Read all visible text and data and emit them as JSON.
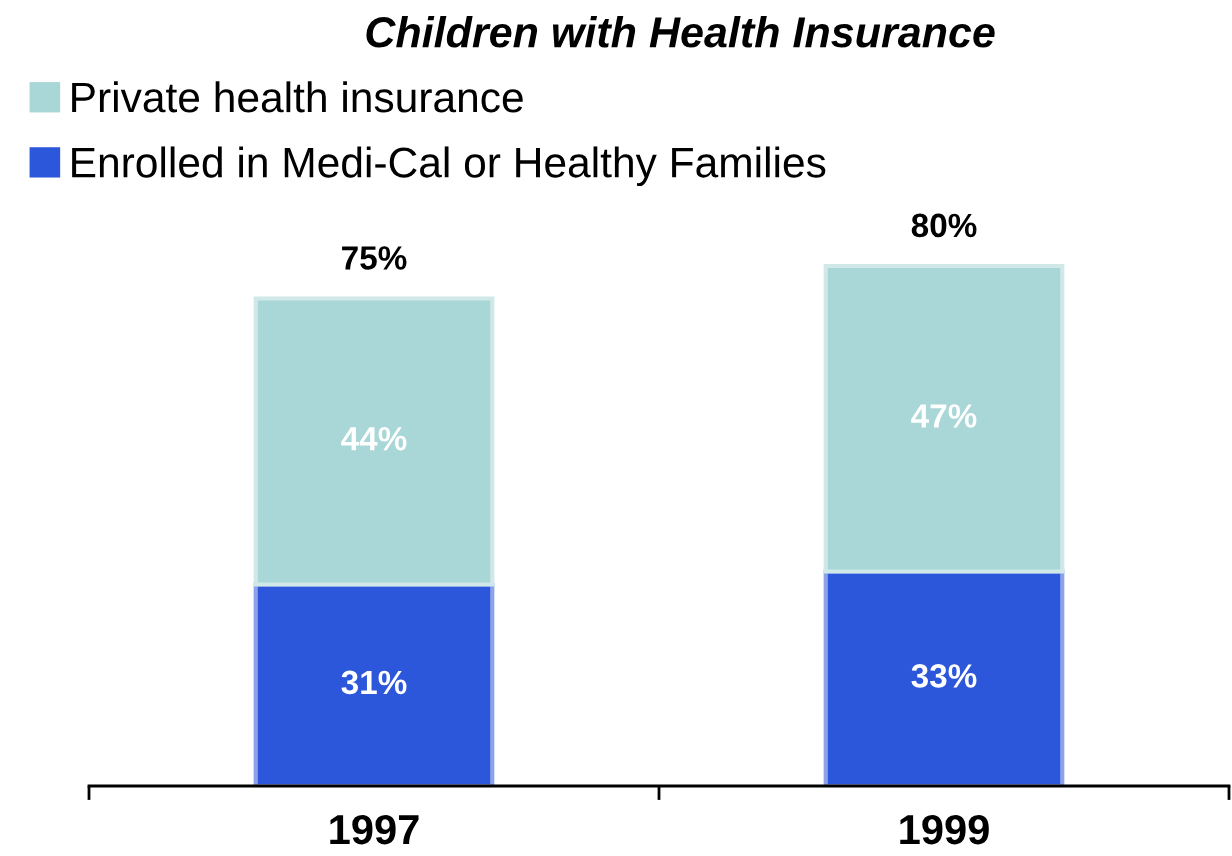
{
  "chart_data": {
    "type": "bar",
    "title": "Children with Health Insurance",
    "categories": [
      "1997",
      "1999"
    ],
    "stacked": true,
    "series": [
      {
        "name": "Enrolled in Medi-Cal or Healthy Families",
        "color": "#2d57db",
        "values": [
          31,
          33
        ],
        "value_labels": [
          "31%",
          "33%"
        ]
      },
      {
        "name": "Private health insurance",
        "color": "#a9d6d6",
        "values": [
          44,
          47
        ],
        "value_labels": [
          "44%",
          "47%"
        ]
      }
    ],
    "totals": [
      "75%",
      "80%"
    ],
    "legend": "top left",
    "grid": false,
    "tick_labels": "x"
  }
}
